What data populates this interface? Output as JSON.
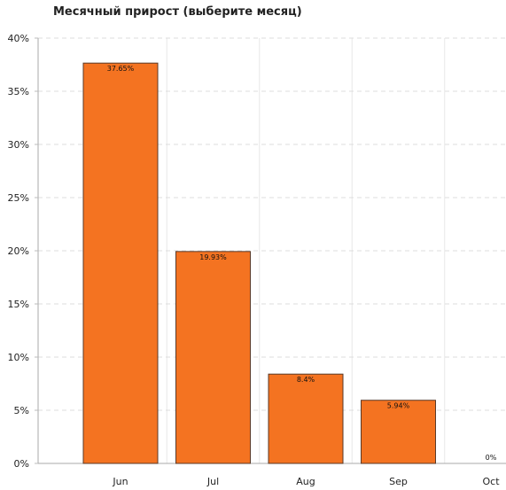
{
  "chart_data": {
    "type": "bar",
    "title": "Месячный прирост (выберите месяц)",
    "xlabel": "",
    "ylabel": "",
    "categories": [
      "Jun",
      "Jul",
      "Aug",
      "Sep",
      "Oct"
    ],
    "values": [
      37.65,
      19.93,
      8.4,
      5.94,
      0
    ],
    "data_labels": [
      "37.65%",
      "19.93%",
      "8.4%",
      "5.94%",
      "0%"
    ],
    "ylim": [
      0,
      40
    ],
    "y_ticks": [
      0,
      5,
      10,
      15,
      20,
      25,
      30,
      35,
      40
    ],
    "y_tick_labels": [
      "0%",
      "5%",
      "10%",
      "15%",
      "20%",
      "25%",
      "30%",
      "35%",
      "40%"
    ],
    "grid": true,
    "bar_color": "#f47321",
    "bar_border_color": "#5a3a28"
  }
}
